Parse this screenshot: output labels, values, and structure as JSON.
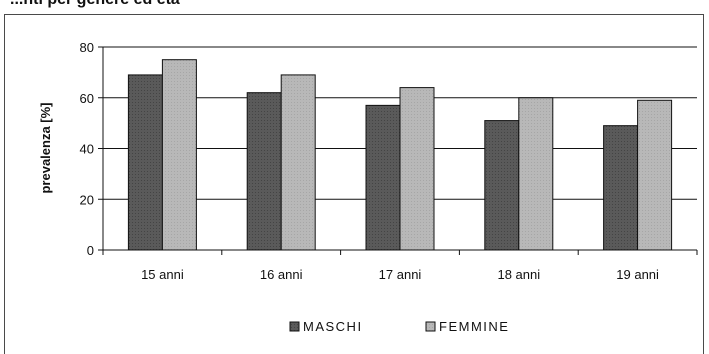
{
  "chart_data": {
    "type": "bar",
    "title": "...nti per genere ed età",
    "ylabel": "prevalenza [%]",
    "xlabel": "",
    "ylim": [
      0,
      80
    ],
    "yticks": [
      0,
      20,
      40,
      60,
      80
    ],
    "categories": [
      "15 anni",
      "16 anni",
      "17 anni",
      "18 anni",
      "19 anni"
    ],
    "series": [
      {
        "name": "MASCHI",
        "values": [
          69,
          62,
          57,
          51,
          49
        ]
      },
      {
        "name": "FEMMINE",
        "values": [
          75,
          69,
          64,
          60,
          59
        ]
      }
    ],
    "grid": true,
    "legend_position": "bottom",
    "colors": {
      "MASCHI": "#5a5a5a",
      "FEMMINE": "#b4b4b4"
    }
  }
}
